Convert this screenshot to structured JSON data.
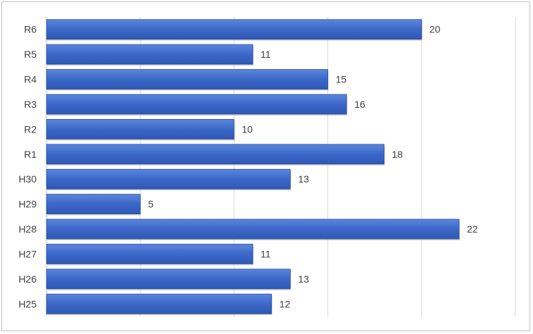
{
  "chart_data": {
    "type": "bar",
    "orientation": "horizontal",
    "title": "",
    "xlabel": "",
    "ylabel": "",
    "categories": [
      "H25",
      "H26",
      "H27",
      "H28",
      "H29",
      "H30",
      "R1",
      "R2",
      "R3",
      "R4",
      "R5",
      "R6"
    ],
    "values": [
      12,
      13,
      11,
      22,
      5,
      13,
      18,
      10,
      16,
      15,
      11,
      20
    ],
    "xlim": [
      0,
      25
    ],
    "grid": true,
    "legend": "none",
    "colors": {
      "bar": "#3c68c8",
      "bar_edge": "#2c4f9e",
      "grid": "#d9d9d9",
      "axis": "#bfbfbf"
    }
  }
}
